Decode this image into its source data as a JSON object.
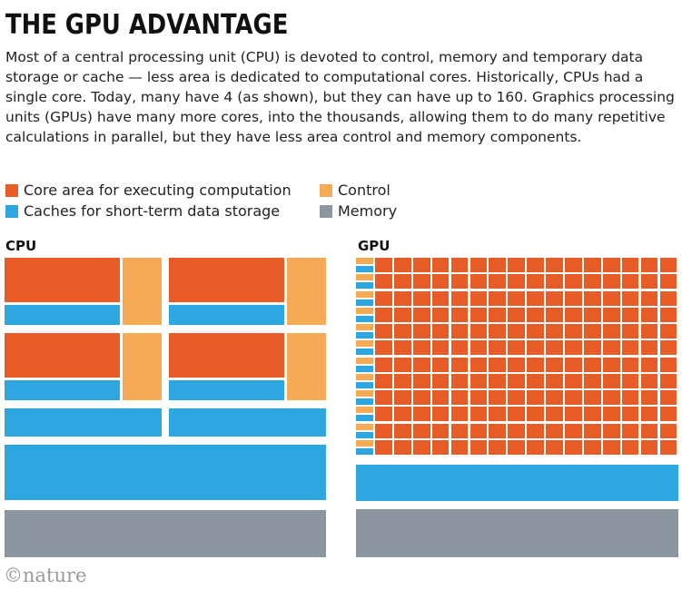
{
  "title": "THE GPU ADVANTAGE",
  "description": "Most of a central processing unit (CPU) is devoted to control, memory and temporary data storage or cache — less area is dedicated to computational cores. Historically, CPUs had a single core. Today, many have 4 (as shown), but they can have up to 160. Graphics processing units (GPUs) have many more cores, into the thousands, allowing them to do many repetitive calculations in parallel, but they have less area control and memory components.",
  "legend": [
    {
      "label": "Core area for executing computation",
      "color": "#e85d27"
    },
    {
      "label": "Control",
      "color": "#f5aa55"
    },
    {
      "label": "Caches for short-term data storage",
      "color": "#2ea7e0"
    },
    {
      "label": "Memory",
      "color": "#8b96a0"
    }
  ],
  "cpu": {
    "label": "CPU",
    "cores": 4
  },
  "gpu": {
    "label": "GPU",
    "core_grid": {
      "rows": 12,
      "cols": 16
    }
  },
  "colors": {
    "core": "#e85d27",
    "control": "#f5aa55",
    "cache": "#2ea7e0",
    "memory": "#8b96a0"
  },
  "credit": "©nature"
}
